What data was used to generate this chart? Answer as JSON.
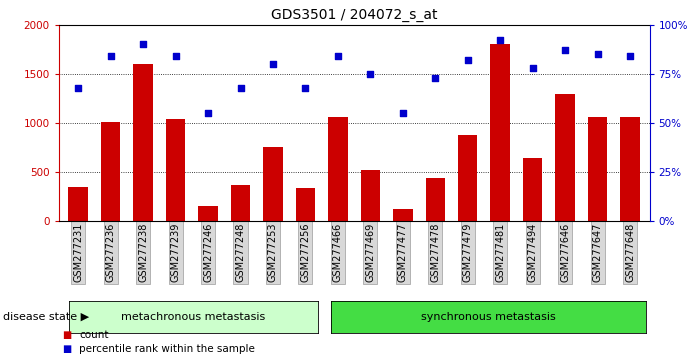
{
  "title": "GDS3501 / 204072_s_at",
  "categories": [
    "GSM277231",
    "GSM277236",
    "GSM277238",
    "GSM277239",
    "GSM277246",
    "GSM277248",
    "GSM277253",
    "GSM277256",
    "GSM277466",
    "GSM277469",
    "GSM277477",
    "GSM277478",
    "GSM277479",
    "GSM277481",
    "GSM277494",
    "GSM277646",
    "GSM277647",
    "GSM277648"
  ],
  "counts": [
    350,
    1010,
    1600,
    1040,
    155,
    370,
    760,
    340,
    1060,
    520,
    120,
    445,
    880,
    1800,
    640,
    1300,
    1060,
    1060
  ],
  "percentiles": [
    68,
    84,
    90,
    84,
    55,
    68,
    80,
    68,
    84,
    75,
    55,
    73,
    82,
    92,
    78,
    87,
    85,
    84
  ],
  "group1_label": "metachronous metastasis",
  "group2_label": "synchronous metastasis",
  "group1_count": 8,
  "group2_count": 10,
  "bar_color": "#cc0000",
  "dot_color": "#0000cc",
  "group1_bg": "#ccffcc",
  "group2_bg": "#44dd44",
  "ylim_left": [
    0,
    2000
  ],
  "ylim_right": [
    0,
    100
  ],
  "yticks_left": [
    0,
    500,
    1000,
    1500,
    2000
  ],
  "yticks_right": [
    0,
    25,
    50,
    75,
    100
  ],
  "disease_state_label": "disease state",
  "legend_count_label": "count",
  "legend_pct_label": "percentile rank within the sample",
  "title_fontsize": 10,
  "label_fontsize": 8,
  "tick_fontsize": 7.5
}
